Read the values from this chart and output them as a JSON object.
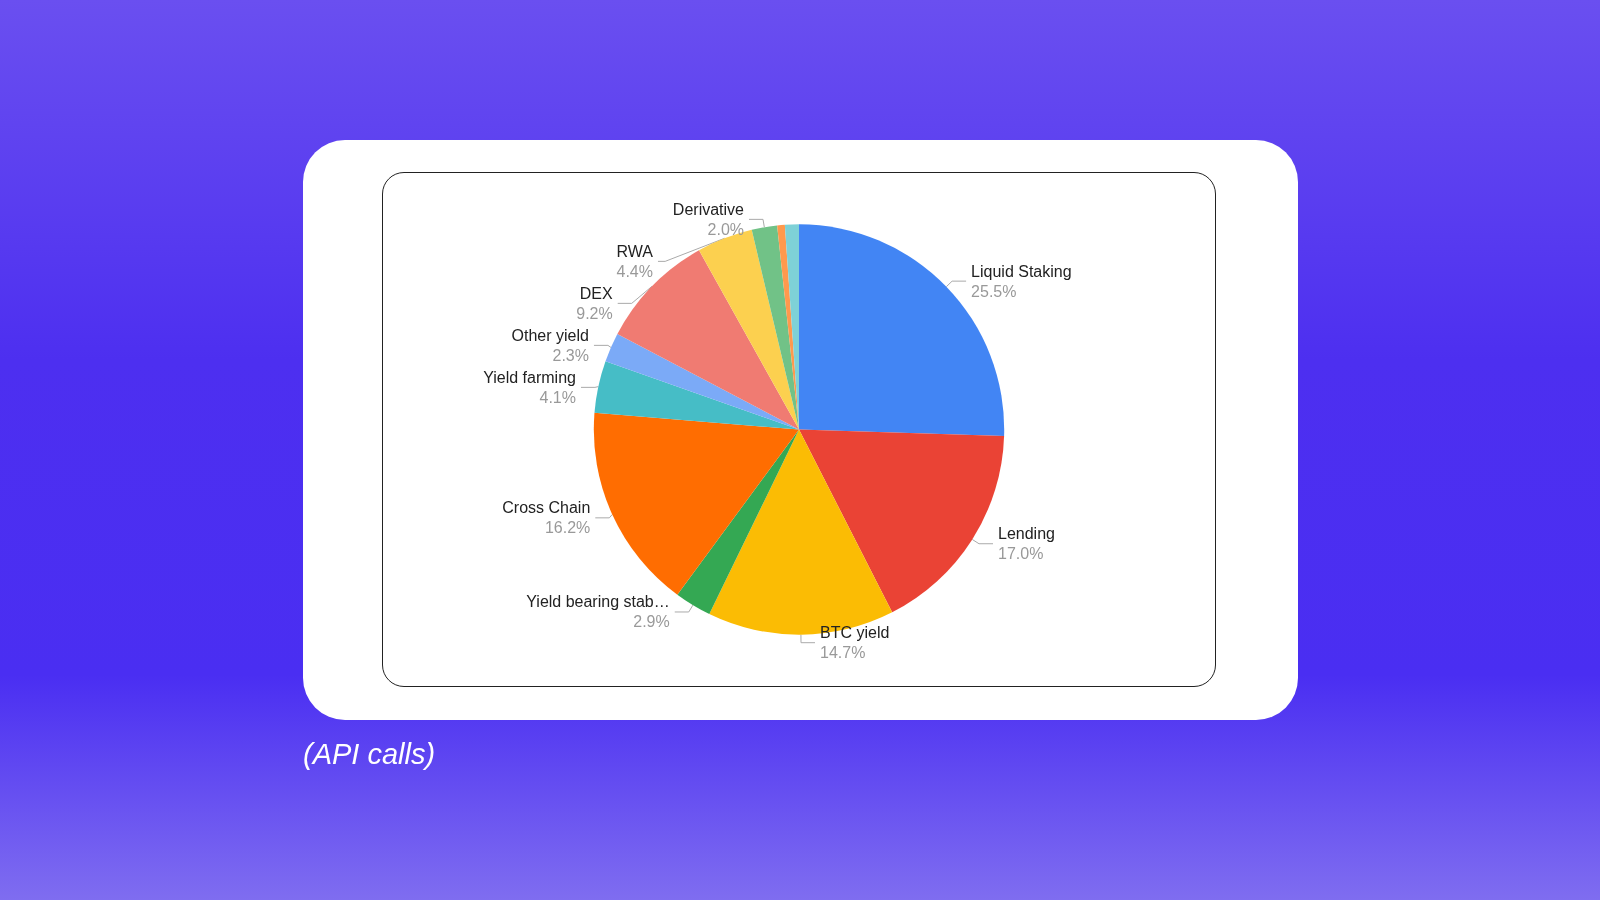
{
  "chart_data": {
    "type": "pie",
    "categories": [
      "Liquid Staking",
      "Lending",
      "BTC yield",
      "Yield bearing stab…",
      "Cross Chain",
      "Yield farming",
      "Other yield",
      "DEX",
      "RWA",
      "Derivative",
      null,
      null
    ],
    "values": [
      25.5,
      17.0,
      14.7,
      2.9,
      16.2,
      4.1,
      2.3,
      9.2,
      4.4,
      2.0,
      0.6,
      1.1
    ],
    "colors": [
      "#4285f4",
      "#ea4335",
      "#fbbc04",
      "#34a853",
      "#ff6d01",
      "#46bdc6",
      "#7baaf7",
      "#f07b72",
      "#fcd04f",
      "#71c287",
      "#ff994d",
      "#7ed1d7"
    ],
    "value_labels": [
      "25.5%",
      "17.0%",
      "14.7%",
      "2.9%",
      "16.2%",
      "4.1%",
      "2.3%",
      "9.2%",
      "4.4%",
      "2.0%",
      null,
      null
    ],
    "legend": false,
    "annotations": [
      "(API calls)"
    ]
  }
}
